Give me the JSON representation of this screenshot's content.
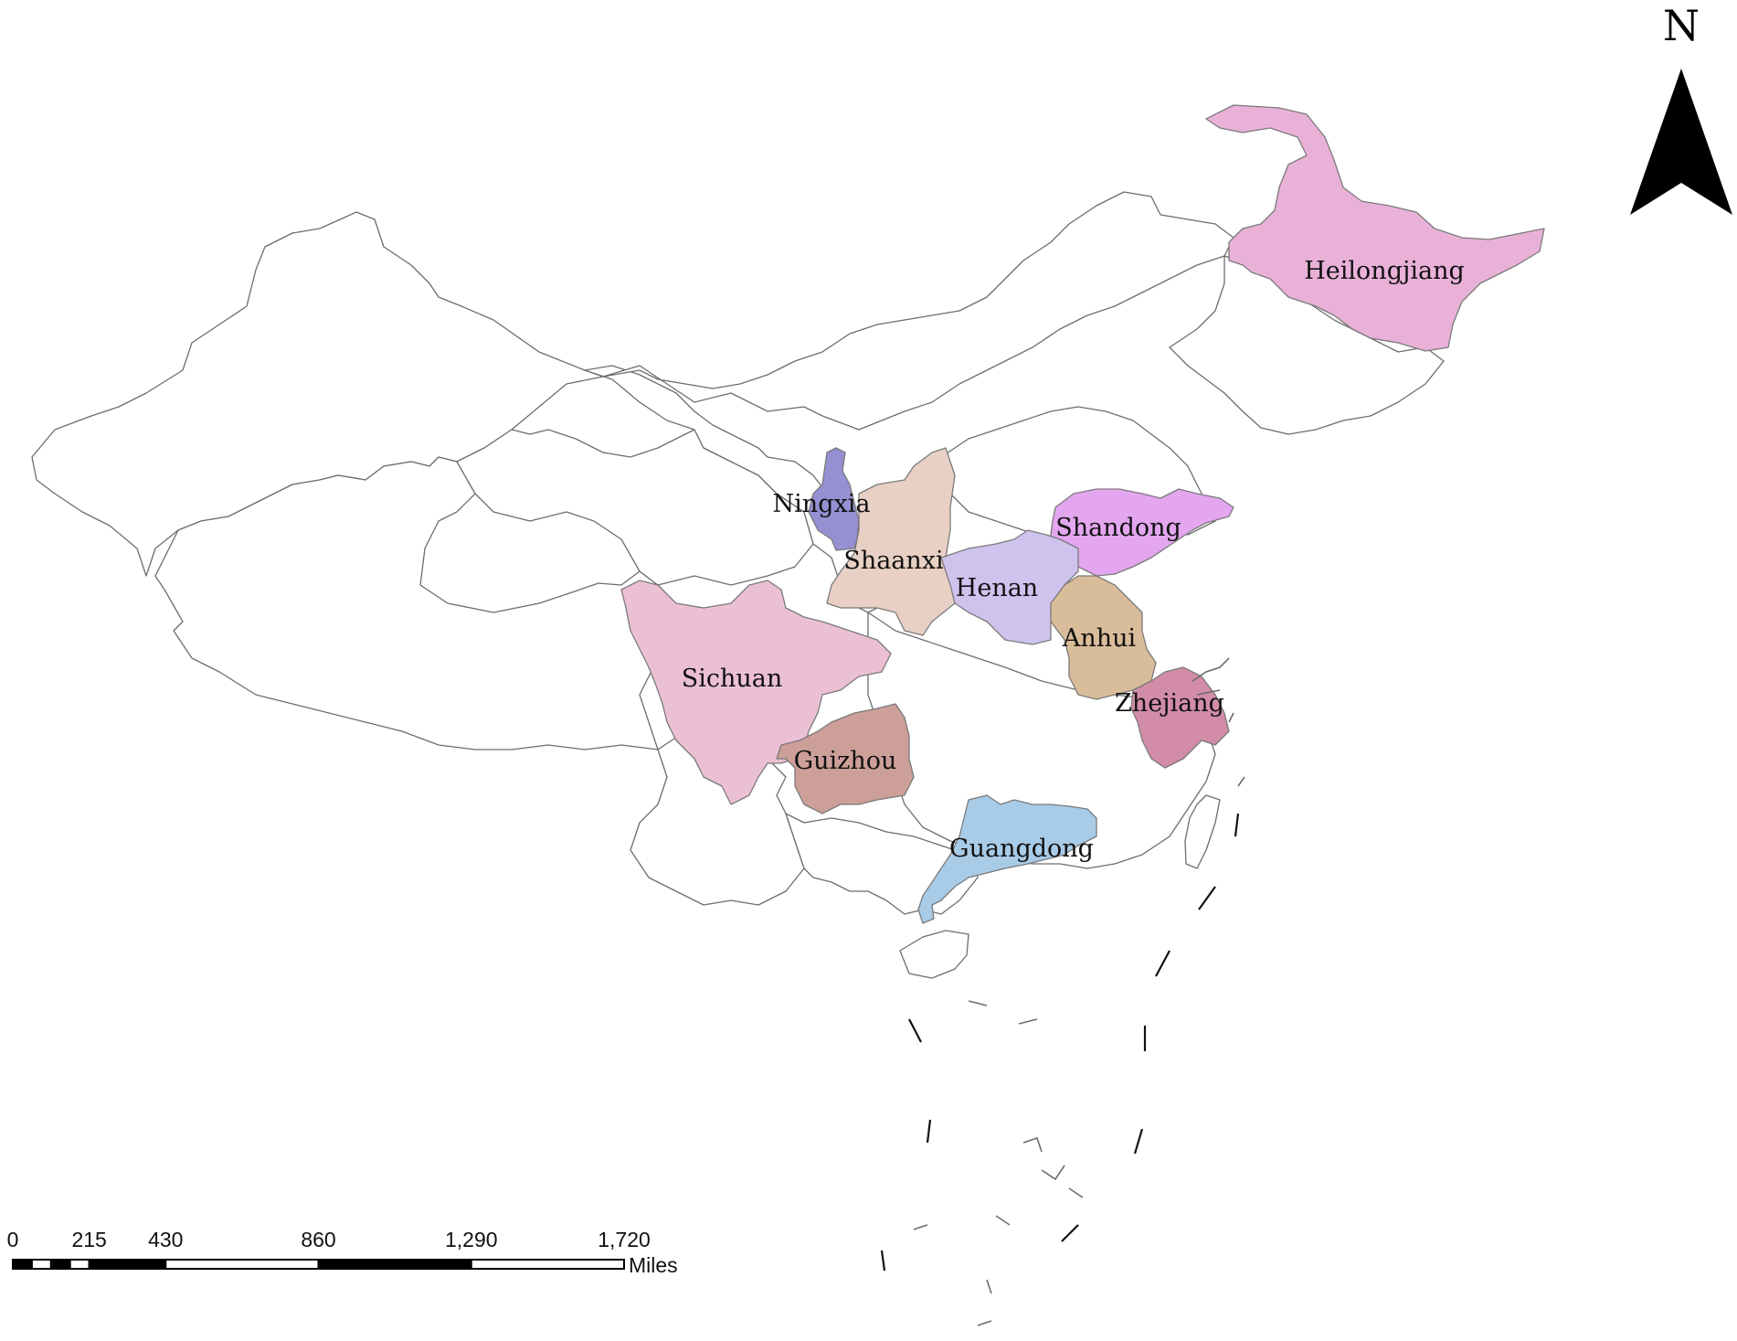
{
  "provinces": [
    {
      "id": "heilongjiang",
      "label": "Heilongjiang",
      "color": "#e9b1d8"
    },
    {
      "id": "ningxia",
      "label": "Ningxia",
      "color": "#9690d3"
    },
    {
      "id": "shaanxi",
      "label": "Shaanxi",
      "color": "#e8d0c4"
    },
    {
      "id": "shandong",
      "label": "Shandong",
      "color": "#e3a6ef"
    },
    {
      "id": "henan",
      "label": "Henan",
      "color": "#cfc3ee"
    },
    {
      "id": "anhui",
      "label": "Anhui",
      "color": "#d9bc99"
    },
    {
      "id": "sichuan",
      "label": "Sichuan",
      "color": "#ecc0d4"
    },
    {
      "id": "zhejiang",
      "label": "Zhejiang",
      "color": "#d28ca8"
    },
    {
      "id": "guizhou",
      "label": "Guizhou",
      "color": "#cd9f99"
    },
    {
      "id": "guangdong",
      "label": "Guangdong",
      "color": "#a8cbe7"
    }
  ],
  "north_arrow": {
    "label": "N"
  },
  "scale_bar": {
    "ticks": [
      "0",
      "215",
      "430",
      "860",
      "1,290",
      "1,720"
    ],
    "tick_values": [
      0,
      215,
      430,
      860,
      1290,
      1720
    ],
    "unit": "Miles"
  }
}
